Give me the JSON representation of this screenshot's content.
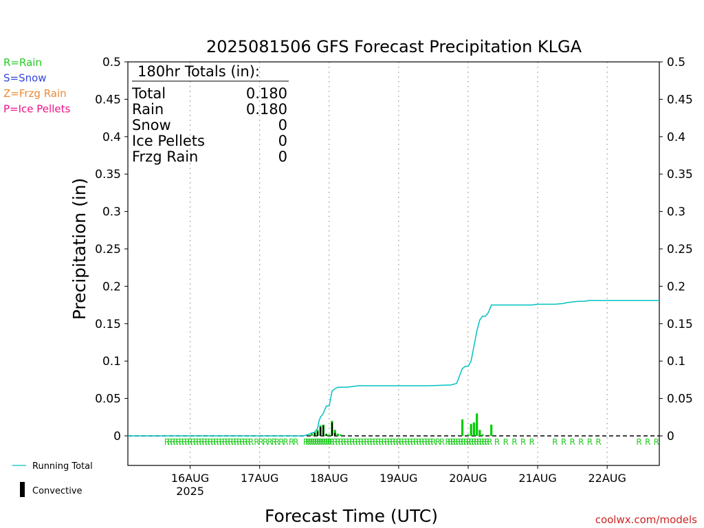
{
  "chart_data": {
    "type": "bar",
    "title": "2025081506 GFS Forecast Precipitation KLGA",
    "xlabel": "Forecast Time (UTC)",
    "ylabel": "Precipitation (in)",
    "ylim": [
      0,
      0.5
    ],
    "y_ticks": [
      "0",
      "0.05",
      "0.1",
      "0.15",
      "0.2",
      "0.25",
      "0.3",
      "0.35",
      "0.4",
      "0.45",
      "0.5"
    ],
    "x_range_hours": [
      -3.5,
      180
    ],
    "x_ticks": [
      {
        "hour": 18,
        "label": "16AUG",
        "sublabel": "2025"
      },
      {
        "hour": 42,
        "label": "17AUG",
        "sublabel": ""
      },
      {
        "hour": 66,
        "label": "18AUG",
        "sublabel": ""
      },
      {
        "hour": 90,
        "label": "19AUG",
        "sublabel": ""
      },
      {
        "hour": 114,
        "label": "20AUG",
        "sublabel": ""
      },
      {
        "hour": 138,
        "label": "21AUG",
        "sublabel": ""
      },
      {
        "hour": 162,
        "label": "22AUG",
        "sublabel": ""
      }
    ],
    "grid": "vertical dotted",
    "legend_top": [
      {
        "text": "R=Rain",
        "color": "#22cc22"
      },
      {
        "text": "S=Snow",
        "color": "#3344dd"
      },
      {
        "text": "Z=Frzg Rain",
        "color": "#ee8833"
      },
      {
        "text": "P=Ice Pellets",
        "color": "#ee1188"
      }
    ],
    "legend_bottom": [
      {
        "text": "Running Total",
        "color": "#00c0c0"
      },
      {
        "text": "Convective",
        "color": "#000000"
      }
    ],
    "totals_box": {
      "header": "180hr Totals (in):",
      "rows": [
        {
          "label": "Total",
          "value": "0.180"
        },
        {
          "label": "Rain",
          "value": "0.180"
        },
        {
          "label": "Snow",
          "value": "0"
        },
        {
          "label": "Ice Pellets",
          "value": "0"
        },
        {
          "label": "Frzg Rain",
          "value": "0"
        }
      ]
    },
    "running_total": {
      "name": "Running Total",
      "color": "#00c0c0",
      "x": [
        -3.5,
        57,
        58,
        59,
        60,
        61,
        62,
        62.5,
        63,
        64,
        65,
        66,
        67,
        68,
        69,
        70,
        72,
        74,
        76,
        78,
        80,
        84,
        90,
        100,
        108,
        110,
        111,
        112,
        113,
        114,
        115,
        116,
        117,
        118,
        119,
        120,
        121,
        122,
        123,
        124,
        125,
        126,
        127,
        128,
        130,
        132,
        136,
        138,
        144,
        147,
        148,
        150,
        152,
        154,
        156,
        160,
        170,
        180
      ],
      "y": [
        0,
        0,
        0.001,
        0.002,
        0.004,
        0.005,
        0.01,
        0.02,
        0.025,
        0.03,
        0.04,
        0.04,
        0.06,
        0.063,
        0.065,
        0.065,
        0.065,
        0.066,
        0.067,
        0.067,
        0.067,
        0.067,
        0.067,
        0.067,
        0.068,
        0.07,
        0.08,
        0.09,
        0.093,
        0.093,
        0.1,
        0.12,
        0.14,
        0.155,
        0.16,
        0.16,
        0.165,
        0.175,
        0.175,
        0.175,
        0.175,
        0.175,
        0.175,
        0.175,
        0.175,
        0.175,
        0.175,
        0.176,
        0.176,
        0.177,
        0.178,
        0.179,
        0.18,
        0.18,
        0.181,
        0.181,
        0.181,
        0.181
      ]
    },
    "rain_bars": {
      "name": "Rain",
      "color": "#00cc00",
      "x": [
        60,
        61,
        62,
        63,
        64,
        65,
        66,
        67,
        68,
        69,
        70,
        112,
        114,
        115,
        116,
        117,
        118,
        119,
        122
      ],
      "values": [
        0.003,
        0.005,
        0.008,
        0.014,
        0.015,
        0.003,
        0.002,
        0.02,
        0.008,
        0.003,
        0.002,
        0.022,
        0.002,
        0.016,
        0.018,
        0.03,
        0.008,
        0.002,
        0.015
      ]
    },
    "convective_bars": {
      "name": "Convective",
      "color": "#000000",
      "x": [
        61,
        62,
        63,
        64,
        65,
        67,
        68
      ],
      "values": [
        0.004,
        0.006,
        0.012,
        0.014,
        0.002,
        0.018,
        0.004
      ]
    },
    "ptype_marks": {
      "color": "#22cc22",
      "symbol": "R",
      "ranges": [
        [
          10,
          39,
          1
        ],
        [
          41,
          47,
          1.5
        ],
        [
          48,
          51,
          1.5
        ],
        [
          53,
          55,
          1.5
        ],
        [
          58,
          67,
          0.75
        ],
        [
          68,
          101,
          1
        ],
        [
          102,
          106,
          1.5
        ],
        [
          107,
          122,
          0.9
        ],
        [
          124,
          136,
          3
        ],
        [
          144,
          159,
          3
        ],
        [
          173,
          179,
          3
        ]
      ]
    }
  },
  "watermark": "coolwx.com/models",
  "watermark_color": "#cc2222"
}
